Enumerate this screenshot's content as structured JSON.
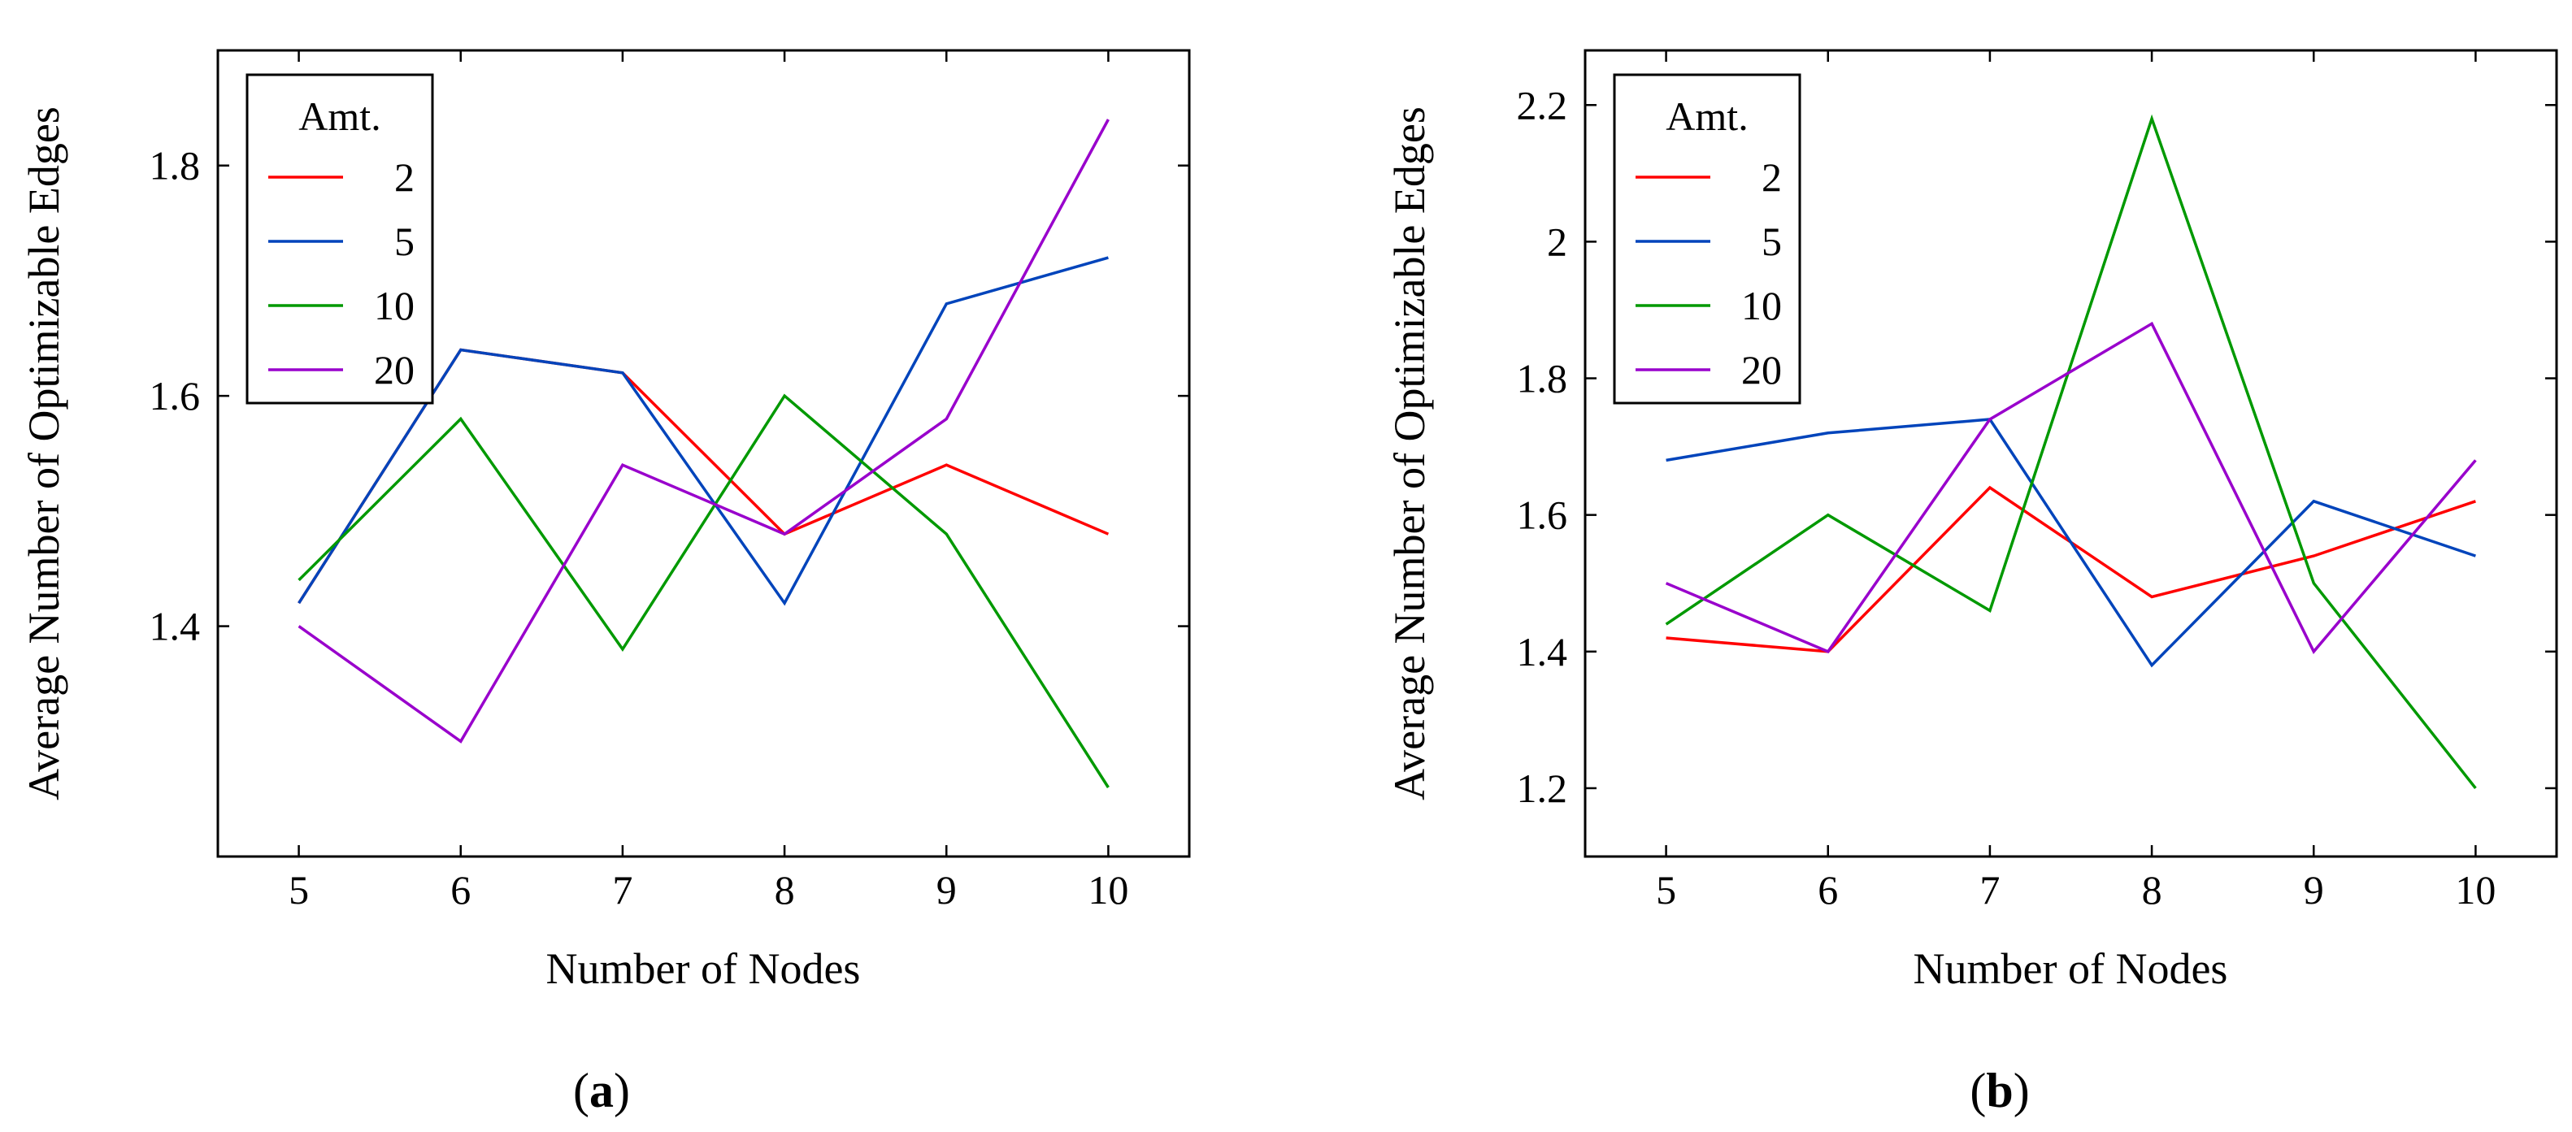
{
  "chart_data": [
    {
      "type": "line",
      "panel_label": "a",
      "title": "",
      "xlabel": "Number of Nodes",
      "ylabel": "Average Number of Optimizable Edges",
      "x": [
        5,
        6,
        7,
        8,
        9,
        10
      ],
      "x_tick_labels": [
        "5",
        "6",
        "7",
        "8",
        "9",
        "10"
      ],
      "y_ticks": [
        1.4,
        1.6,
        1.8
      ],
      "y_tick_labels": [
        "1.4",
        "1.6",
        "1.8"
      ],
      "xlim": [
        4.5,
        10.5
      ],
      "ylim": [
        1.2,
        1.9
      ],
      "grid": false,
      "legend": {
        "title": "Amt.",
        "position": "top-left"
      },
      "series": [
        {
          "name": "2",
          "color": "#ff0000",
          "values": [
            1.42,
            1.64,
            1.62,
            1.48,
            1.54,
            1.48
          ]
        },
        {
          "name": "5",
          "color": "#0044bb",
          "values": [
            1.42,
            1.64,
            1.62,
            1.42,
            1.68,
            1.72
          ]
        },
        {
          "name": "10",
          "color": "#009900",
          "values": [
            1.44,
            1.58,
            1.38,
            1.6,
            1.48,
            1.26
          ]
        },
        {
          "name": "20",
          "color": "#9900cc",
          "values": [
            1.4,
            1.3,
            1.54,
            1.48,
            1.58,
            1.84
          ]
        }
      ]
    },
    {
      "type": "line",
      "panel_label": "b",
      "title": "",
      "xlabel": "Number of Nodes",
      "ylabel": "Average Number of Optimizable Edges",
      "x": [
        5,
        6,
        7,
        8,
        9,
        10
      ],
      "x_tick_labels": [
        "5",
        "6",
        "7",
        "8",
        "9",
        "10"
      ],
      "y_ticks": [
        1.2,
        1.4,
        1.6,
        1.8,
        2.0,
        2.2
      ],
      "y_tick_labels": [
        "1.2",
        "1.4",
        "1.6",
        "1.8",
        "2",
        "2.2"
      ],
      "xlim": [
        4.5,
        10.5
      ],
      "ylim": [
        1.1,
        2.28
      ],
      "grid": false,
      "legend": {
        "title": "Amt.",
        "position": "top-left"
      },
      "series": [
        {
          "name": "2",
          "color": "#ff0000",
          "values": [
            1.42,
            1.4,
            1.64,
            1.48,
            1.54,
            1.62
          ]
        },
        {
          "name": "5",
          "color": "#0044bb",
          "values": [
            1.68,
            1.72,
            1.74,
            1.38,
            1.62,
            1.54
          ]
        },
        {
          "name": "10",
          "color": "#009900",
          "values": [
            1.44,
            1.6,
            1.46,
            2.18,
            1.5,
            1.2
          ]
        },
        {
          "name": "20",
          "color": "#9900cc",
          "values": [
            1.5,
            1.4,
            1.74,
            1.88,
            1.4,
            1.68
          ]
        }
      ]
    }
  ]
}
